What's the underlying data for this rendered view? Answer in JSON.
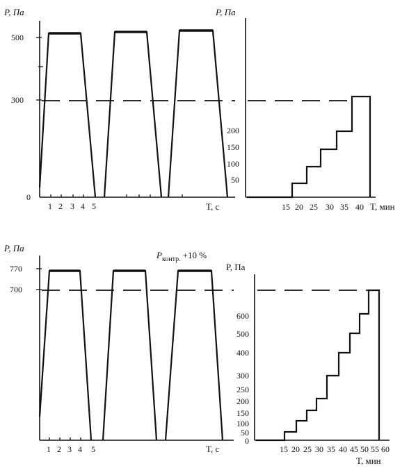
{
  "chart_data": [
    {
      "type": "line",
      "panel": "top-left",
      "ylabel": "P, Па",
      "xlabel": "T, с",
      "y_ticks": [
        "500",
        "300",
        "0"
      ],
      "x_ticks": [
        "1",
        "2",
        "3",
        "4",
        "5"
      ],
      "reference_level": 300,
      "series": [
        {
          "cycles": 3,
          "plateau": 500,
          "reference": 300
        }
      ]
    },
    {
      "type": "line",
      "panel": "top-right",
      "ylabel": "P, Па",
      "xlabel": "T, мин",
      "y_ticks": [
        "200",
        "150",
        "100",
        "50"
      ],
      "x_ticks": [
        "15",
        "20",
        "25",
        "30",
        "35",
        "40"
      ],
      "reference_level": 300,
      "series": [
        {
          "steps_x": [
            15,
            20,
            25,
            30,
            35,
            40
          ],
          "steps_y": [
            0,
            50,
            100,
            150,
            200,
            300
          ]
        }
      ]
    },
    {
      "type": "line",
      "panel": "bottom-left",
      "ylabel": "P, Па",
      "xlabel": "T, с",
      "y_ticks": [
        "770",
        "700"
      ],
      "x_ticks": [
        "1",
        "2",
        "3",
        "4",
        "5"
      ],
      "annotation_main": "P",
      "annotation_sub": "контр.",
      "annotation_tail": "+10 %",
      "reference_level": 700,
      "series": [
        {
          "cycles": 3,
          "plateau": 770,
          "reference": 700
        }
      ]
    },
    {
      "type": "line",
      "panel": "bottom-right",
      "ylabel": "P, Па",
      "xlabel": "T, мин",
      "y_ticks": [
        "600",
        "500",
        "400",
        "300",
        "250",
        "200",
        "150",
        "100",
        "50",
        "0"
      ],
      "x_ticks": [
        "15",
        "20",
        "25",
        "30",
        "35",
        "40",
        "45",
        "50",
        "55",
        "60"
      ],
      "reference_level": 700,
      "series": [
        {
          "steps_x": [
            15,
            20,
            25,
            30,
            35,
            40,
            45,
            50,
            55,
            60
          ],
          "steps_y": [
            0,
            50,
            100,
            150,
            250,
            400,
            500,
            600,
            700,
            700
          ]
        }
      ]
    }
  ]
}
